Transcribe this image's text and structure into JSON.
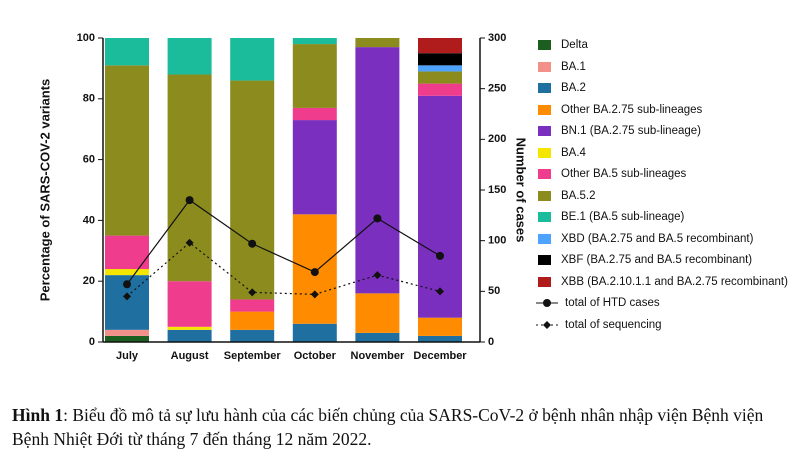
{
  "chart_data": {
    "type": "stacked_bar",
    "ylabel": "Percentage of SARS-COV-2 variants",
    "y2label": "Number of cases",
    "categories": [
      "July",
      "August",
      "September",
      "October",
      "November",
      "December"
    ],
    "ylim": [
      0,
      100
    ],
    "yticks": [
      0,
      20,
      40,
      60,
      80,
      100
    ],
    "y2lim": [
      0,
      300
    ],
    "y2ticks": [
      0,
      50,
      100,
      150,
      200,
      250,
      300
    ],
    "series": [
      {
        "name": "Delta",
        "color": "#1b5e20",
        "values": [
          2,
          0,
          0,
          0,
          0,
          0
        ]
      },
      {
        "name": "BA.1",
        "color": "#f4908a",
        "values": [
          2,
          0,
          0,
          0,
          0,
          0
        ]
      },
      {
        "name": "BA.2",
        "color": "#1f6fa0",
        "values": [
          18,
          4,
          4,
          6,
          3,
          2
        ]
      },
      {
        "name": "Other BA.2.75 sub-lineages",
        "color": "#ff8c00",
        "values": [
          0,
          0,
          6,
          36,
          13,
          6
        ]
      },
      {
        "name": "BN.1 (BA.2.75 sub-lineage)",
        "color": "#7b2fbf",
        "values": [
          0,
          0,
          0,
          31,
          81,
          73
        ]
      },
      {
        "name": "BA.4",
        "color": "#f5e600",
        "values": [
          2,
          1,
          0,
          0,
          0,
          0
        ]
      },
      {
        "name": "Other BA.5 sub-lineages",
        "color": "#f03c8c",
        "values": [
          11,
          15,
          4,
          4,
          0,
          4
        ]
      },
      {
        "name": "BA.5.2",
        "color": "#8c8c1e",
        "values": [
          56,
          68,
          72,
          21,
          3,
          4
        ]
      },
      {
        "name": "BE.1 (BA.5 sub-lineage)",
        "color": "#1abc9c",
        "values": [
          9,
          12,
          14,
          2,
          0,
          0
        ]
      },
      {
        "name": "XBD (BA.2.75 and BA.5 recombinant)",
        "color": "#4da3ff",
        "values": [
          0,
          0,
          0,
          0,
          0,
          2
        ]
      },
      {
        "name": "XBF (BA.2.75 and BA.5 recombinant)",
        "color": "#000000",
        "values": [
          0,
          0,
          0,
          0,
          0,
          4
        ]
      },
      {
        "name": "XBB (BA.2.10.1.1 and BA.2.75 recombinant)",
        "color": "#b01c1c",
        "values": [
          0,
          0,
          0,
          0,
          0,
          5
        ]
      }
    ],
    "lines": [
      {
        "name": "total of HTD cases",
        "color": "#111111",
        "axis": "y2",
        "marker": "circle",
        "dash": false,
        "values": [
          57,
          140,
          97,
          69,
          122,
          85
        ]
      },
      {
        "name": "total of sequencing",
        "color": "#111111",
        "axis": "y2",
        "marker": "diamond",
        "dash": true,
        "values": [
          45,
          98,
          49,
          47,
          66,
          50
        ]
      }
    ]
  },
  "caption": {
    "label": "Hình 1",
    "text": ": Biểu đồ mô tả sự lưu hành của các biến chủng của SARS-CoV-2 ở bệnh nhân nhập viện Bệnh viện Bệnh Nhiệt Đới từ tháng 7 đến tháng 12 năm 2022."
  }
}
